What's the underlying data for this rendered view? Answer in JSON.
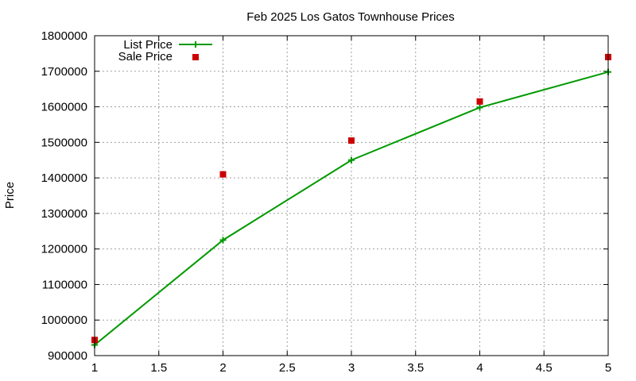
{
  "chart_data": {
    "type": "line",
    "title": "Feb 2025 Los Gatos Townhouse Prices",
    "xlabel": "",
    "ylabel": "Price",
    "xlim": [
      1,
      5
    ],
    "ylim": [
      900000,
      1800000
    ],
    "x_ticks": [
      "1",
      "1.5",
      "2",
      "2.5",
      "3",
      "3.5",
      "4",
      "4.5",
      "5"
    ],
    "y_ticks": [
      "900000",
      "1000000",
      "1100000",
      "1200000",
      "1300000",
      "1400000",
      "1500000",
      "1600000",
      "1700000",
      "1800000"
    ],
    "grid": true,
    "legend_position": "top-left",
    "series": [
      {
        "name": "List Price",
        "style": "linespoints",
        "marker": "plus",
        "color": "#009900",
        "x": [
          1,
          2,
          3,
          4,
          5
        ],
        "y": [
          930000,
          1225000,
          1450000,
          1598000,
          1698000
        ]
      },
      {
        "name": "Sale Price",
        "style": "points",
        "marker": "square",
        "color": "#cc0000",
        "x": [
          1,
          2,
          3,
          4,
          5
        ],
        "y": [
          944000,
          1410000,
          1505000,
          1615000,
          1740000
        ]
      }
    ]
  }
}
